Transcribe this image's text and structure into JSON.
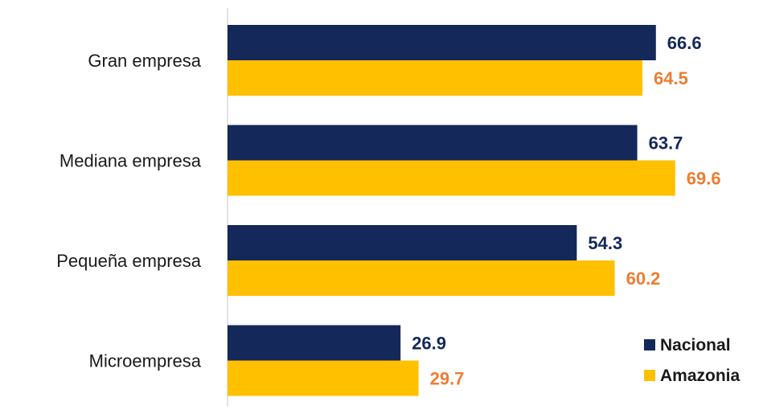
{
  "chart_data": {
    "type": "bar",
    "orientation": "horizontal",
    "categories": [
      "Gran empresa",
      "Mediana empresa",
      "Pequeña empresa",
      "Microempresa"
    ],
    "series": [
      {
        "name": "Nacional",
        "values": [
          66.6,
          63.7,
          54.3,
          26.9
        ],
        "color": "#14285a",
        "label_color": "#14285a"
      },
      {
        "name": "Amazonia",
        "values": [
          64.5,
          69.6,
          60.2,
          29.7
        ],
        "color": "#ffc000",
        "label_color": "#ed7d31"
      }
    ],
    "xlim": [
      0,
      85
    ],
    "grid": false,
    "legend_position": "bottom-right",
    "data_labels": true
  }
}
